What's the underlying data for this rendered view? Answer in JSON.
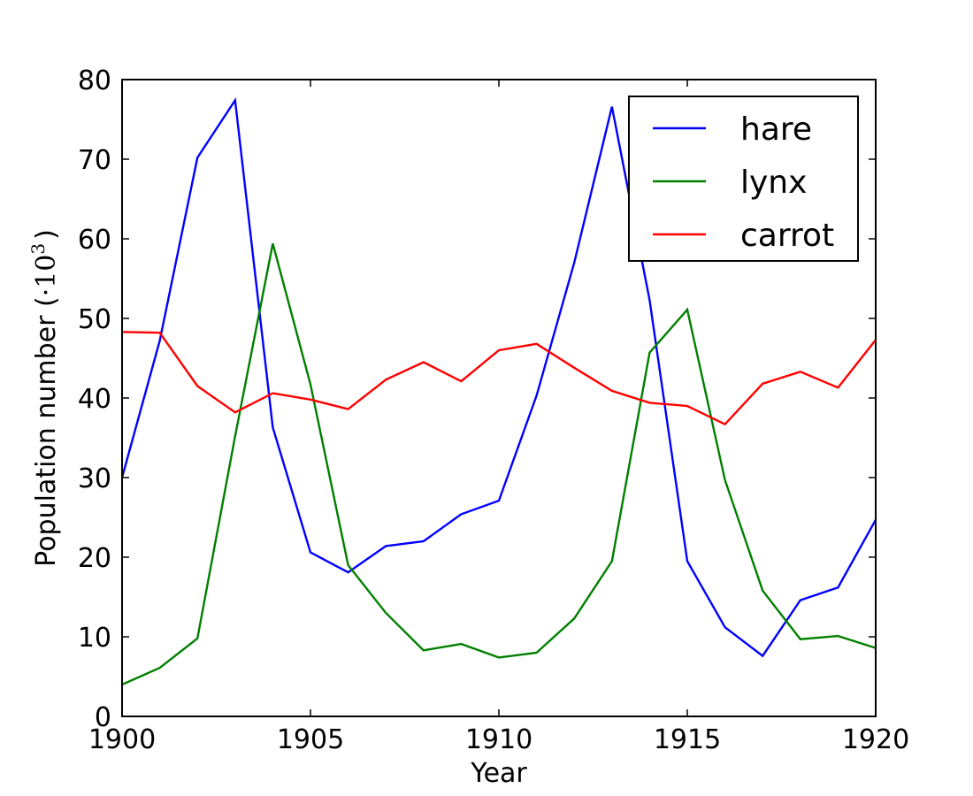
{
  "chart_data": {
    "type": "line",
    "title": "",
    "xlabel": "Year",
    "ylabel_text": "Population number (",
    "ylabel_math": "·10",
    "ylabel_exp": "3",
    "ylabel_close": ")",
    "x": [
      1900,
      1901,
      1902,
      1903,
      1904,
      1905,
      1906,
      1907,
      1908,
      1909,
      1910,
      1911,
      1912,
      1913,
      1914,
      1915,
      1916,
      1917,
      1918,
      1919,
      1920
    ],
    "xlim": [
      1900,
      1920
    ],
    "ylim": [
      0,
      80
    ],
    "xticks": [
      1900,
      1905,
      1910,
      1915,
      1920
    ],
    "yticks": [
      0,
      10,
      20,
      30,
      40,
      50,
      60,
      70,
      80
    ],
    "xtick_labels": [
      "1900",
      "1905",
      "1910",
      "1915",
      "1920"
    ],
    "ytick_labels": [
      "0",
      "10",
      "20",
      "30",
      "40",
      "50",
      "60",
      "70",
      "80"
    ],
    "grid": false,
    "legend_position": "top-right",
    "series": [
      {
        "name": "hare",
        "color": "#0000ff",
        "values": [
          30.0,
          47.2,
          70.2,
          77.4,
          36.3,
          20.6,
          18.1,
          21.4,
          22.0,
          25.4,
          27.1,
          40.3,
          57.0,
          76.6,
          52.3,
          19.5,
          11.2,
          7.6,
          14.6,
          16.2,
          24.7
        ]
      },
      {
        "name": "lynx",
        "color": "#008000",
        "values": [
          4.0,
          6.1,
          9.8,
          35.2,
          59.4,
          41.7,
          19.0,
          13.0,
          8.3,
          9.1,
          7.4,
          8.0,
          12.3,
          19.5,
          45.7,
          51.1,
          29.7,
          15.8,
          9.7,
          10.1,
          8.6
        ]
      },
      {
        "name": "carrot",
        "color": "#ff0000",
        "values": [
          48.3,
          48.2,
          41.5,
          38.2,
          40.6,
          39.8,
          38.6,
          42.3,
          44.5,
          42.1,
          46.0,
          46.8,
          43.8,
          40.9,
          39.4,
          39.0,
          36.7,
          41.8,
          43.3,
          41.3,
          47.3
        ]
      }
    ]
  }
}
